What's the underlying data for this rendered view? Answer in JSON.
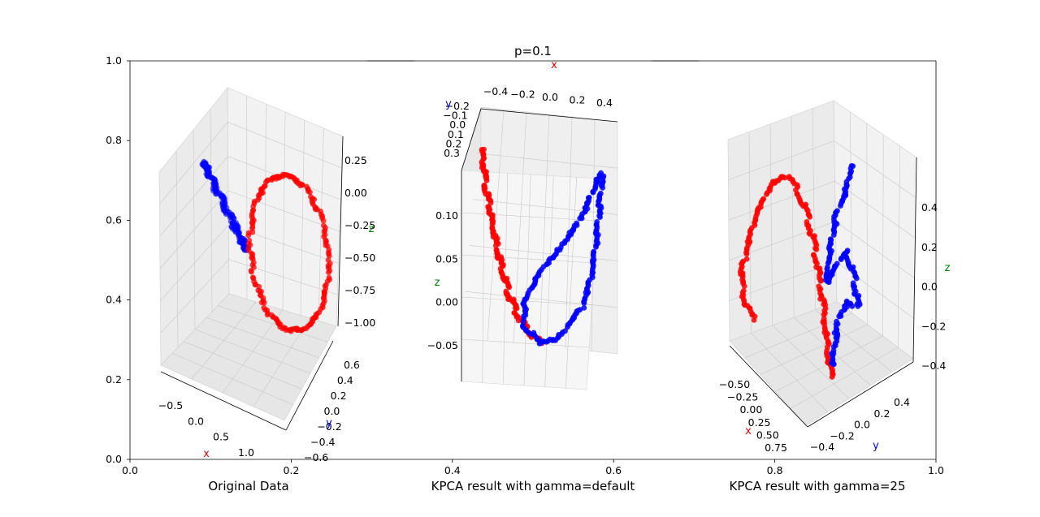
{
  "figure": {
    "title": "p=0.1",
    "background_axes": {
      "xticks": [
        "0.0",
        "0.2",
        "0.4",
        "0.6",
        "0.8",
        "1.0"
      ],
      "yticks": [
        "0.0",
        "0.2",
        "0.4",
        "0.6",
        "0.8",
        "1.0"
      ]
    }
  },
  "chart_data": [
    {
      "type": "scatter",
      "title": "Original Data",
      "projection": "3d",
      "xlabel": "x",
      "ylabel": "y",
      "zlabel": "z",
      "xticks": [
        "−0.5",
        "0.0",
        "0.5",
        "1.0"
      ],
      "yticks": [
        "−0.6",
        "−0.4",
        "−0.2",
        "0.0",
        "0.2",
        "0.4",
        "0.6"
      ],
      "zticks": [
        "0.25",
        "0.00",
        "−0.25",
        "−0.50",
        "−0.75",
        "−1.00"
      ],
      "series": [
        {
          "color": "#0000ff",
          "shape": "ring (circle of radius ~0.45 in the x–y plane, centered at origin)"
        },
        {
          "color": "#ff0000",
          "shape": "ring (circle of radius ~0.45 in the x–z plane, centered at x≈0.5, z≈-0.4)"
        }
      ]
    },
    {
      "type": "scatter",
      "title": "KPCA result with gamma=default",
      "projection": "3d",
      "xlabel": "x",
      "ylabel": "y",
      "zlabel": "z",
      "xticks": [
        "−0.4",
        "−0.2",
        "0.0",
        "0.2",
        "0.4"
      ],
      "yticks": [
        "−0.2",
        "−0.1",
        "0.0",
        "0.1",
        "0.2",
        "0.3"
      ],
      "zticks": [
        "0.10",
        "0.05",
        "0.00",
        "−0.05"
      ],
      "series": [
        {
          "color": "#ff0000",
          "shape": "curve descending from upper-left to the bottom"
        },
        {
          "color": "#0000ff",
          "shape": "curve rising from the bottom to upper-right with a loop"
        }
      ]
    },
    {
      "type": "scatter",
      "title": "KPCA result with gamma=25",
      "projection": "3d",
      "xlabel": "x",
      "ylabel": "y",
      "zlabel": "z",
      "xticks": [
        "−0.50",
        "−0.25",
        "0.00",
        "0.25",
        "0.50",
        "0.75"
      ],
      "yticks": [
        "−0.4",
        "−0.2",
        "0.0",
        "0.2",
        "0.4"
      ],
      "zticks": [
        "0.4",
        "0.2",
        "0.0",
        "−0.2",
        "−0.4"
      ],
      "series": [
        {
          "color": "#ff0000",
          "shape": "arc on the left plus a vertical strand in the middle"
        },
        {
          "color": "#0000ff",
          "shape": "zig-zag vertical strand in the middle-right"
        }
      ]
    }
  ]
}
